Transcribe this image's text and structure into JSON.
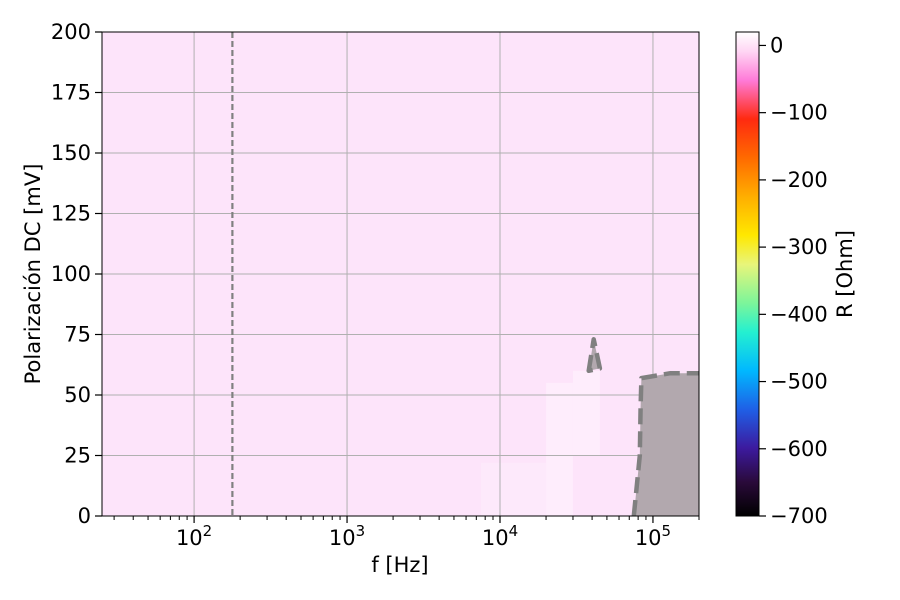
{
  "chart_data": {
    "type": "heatmap",
    "xlabel": "f [Hz]",
    "ylabel": "Polarización DC [mV]",
    "x_scale": "log",
    "xlim": [
      25,
      200000
    ],
    "ylim": [
      0,
      200
    ],
    "x_ticks": [
      {
        "value": 100,
        "base": "10",
        "exp": "2"
      },
      {
        "value": 1000,
        "base": "10",
        "exp": "3"
      },
      {
        "value": 10000,
        "base": "10",
        "exp": "4"
      },
      {
        "value": 100000,
        "base": "10",
        "exp": "5"
      }
    ],
    "y_ticks": [
      0,
      25,
      50,
      75,
      100,
      125,
      150,
      175,
      200
    ],
    "grid": true,
    "colorbar": {
      "label": "R [Ohm]",
      "range": [
        -700,
        20
      ],
      "ticks": [
        "0",
        "−100",
        "−200",
        "−300",
        "−400",
        "−500",
        "−600",
        "−700"
      ],
      "tick_values": [
        0,
        -100,
        -200,
        -300,
        -400,
        -500,
        -600,
        -700
      ],
      "colormap": "gist_ncar-like (black → purple → blue → cyan → green → yellow → orange → red → pink → white)"
    },
    "background_value_ohm": 5,
    "vertical_line": {
      "x": 178,
      "style": "dashed",
      "color": "#808080"
    },
    "regions": [
      {
        "name": "low-R high-f region",
        "fill": "#b2a8ae",
        "boundary_style": "dashed",
        "boundary_color": "#808080",
        "boundary_points": [
          [
            75000,
            0
          ],
          [
            82000,
            25
          ],
          [
            83000,
            45
          ],
          [
            84000,
            57
          ],
          [
            130000,
            59
          ],
          [
            200000,
            59
          ]
        ]
      },
      {
        "name": "small island",
        "fill": "#b2a8ae",
        "boundary_style": "dashed",
        "boundary_color": "#808080",
        "boundary_points": [
          [
            38000,
            60
          ],
          [
            41000,
            73
          ],
          [
            45000,
            61
          ]
        ]
      }
    ],
    "lighter_patches": [
      {
        "x0": 7500,
        "x1": 20000,
        "y0": 0,
        "y1": 22
      },
      {
        "x0": 20000,
        "x1": 30000,
        "y0": 0,
        "y1": 55
      },
      {
        "x0": 30000,
        "x1": 45000,
        "y0": 25,
        "y1": 60
      }
    ]
  }
}
